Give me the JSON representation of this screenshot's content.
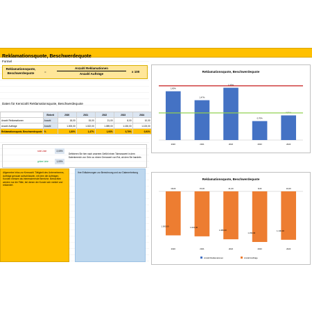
{
  "page_title": "Reklamationsquote, Beschwerdequote",
  "formula": {
    "heading": "Formel",
    "left_line1": "Reklamationsquote,",
    "left_line2": "Beschwerdequote",
    "equals": "=",
    "numerator": "Anzahl Reklamationen",
    "denominator": "Anzahl Aufträge",
    "factor": "x 100"
  },
  "data_heading": "Daten für Kennzahl Reklamationsquote, Beschwerdequote",
  "table": {
    "header": [
      "Einheit",
      "2020",
      "2021",
      "2022",
      "2023",
      "2024"
    ],
    "rows": [
      {
        "label": "Anzahl Reklamationen",
        "unit": "Anzahl",
        "values": [
          "18,00",
          "15,00",
          "21,00",
          "8,00",
          "10,00"
        ]
      },
      {
        "label": "Anzahl Aufträge",
        "unit": "Anzahl",
        "values": [
          "1.000,00",
          "1.022,00",
          "1.089,00",
          "1.150,00",
          "1.100,00"
        ]
      },
      {
        "label": "Reklamationsquote, Beschwerdequote",
        "unit": "%",
        "values": [
          "1,80%",
          "1,47%",
          "1,93%",
          "0,70%",
          "0,91%"
        ]
      }
    ]
  },
  "limits": {
    "rote_label": "rote Linie",
    "rote_value": "2,00%",
    "gruene_label": "grüne Linie",
    "gruene_value": "1,00%",
    "note": "Definieren Sie hier nach unserem Gefühl einen Toleranzwert in dem Datenbereich von Grün zu einem Grenzwert von Rot, ab dem Sie handeln."
  },
  "info_box": {
    "text": "Allgemeine Infos zur Kennzahl: Tätigkeit des Unternehmens, Aufträge genauer aufschlüsseln, mit dem die Aufträgen, Kunden messen als interessierende Bereiche. Betrachten werden nur die Fälle, bei denen der Kunde sich meldet und reklamiert."
  },
  "info_box2": {
    "text": "Ihre Erläuterungen zur Berechnung und zur Datenerhebung"
  },
  "colors": {
    "accent": "#ffc000",
    "bar_blue": "#4472c4",
    "bar_orange": "#ed7d31",
    "red_line": "#c00000",
    "green_line": "#92d050"
  },
  "chart_data": [
    {
      "type": "bar",
      "title": "Reklamationsquote, Beschwerdequote",
      "categories": [
        "2020",
        "2021",
        "2022",
        "2023",
        "2024"
      ],
      "values": [
        1.8,
        1.47,
        1.93,
        0.7,
        0.91
      ],
      "data_labels": [
        "1,80%",
        "1,47%",
        "1,93%",
        "0,70%",
        "0,91%"
      ],
      "reference_lines": {
        "red": 2.0,
        "green": 1.0
      },
      "ylim": [
        0,
        2.2
      ]
    },
    {
      "type": "bar",
      "title": "Reklamationsquote, Beschwerdequote",
      "categories": [
        "2020",
        "2021",
        "2022",
        "2023",
        "2024"
      ],
      "series": [
        {
          "name": "Anzahl Reklamationen",
          "values": [
            18,
            15,
            21,
            8,
            10
          ]
        },
        {
          "name": "Anzahl Aufträge",
          "values": [
            1000,
            1022,
            1089,
            1150,
            1100
          ]
        }
      ],
      "top_labels": [
        "18,00",
        "15,00",
        "21,00",
        "8,00",
        "10,00"
      ],
      "bottom_labels": [
        "1.000,00",
        "1.022,00",
        "1.089,00",
        "1.150,00",
        "1.100,00"
      ],
      "legend": "bottom"
    }
  ]
}
